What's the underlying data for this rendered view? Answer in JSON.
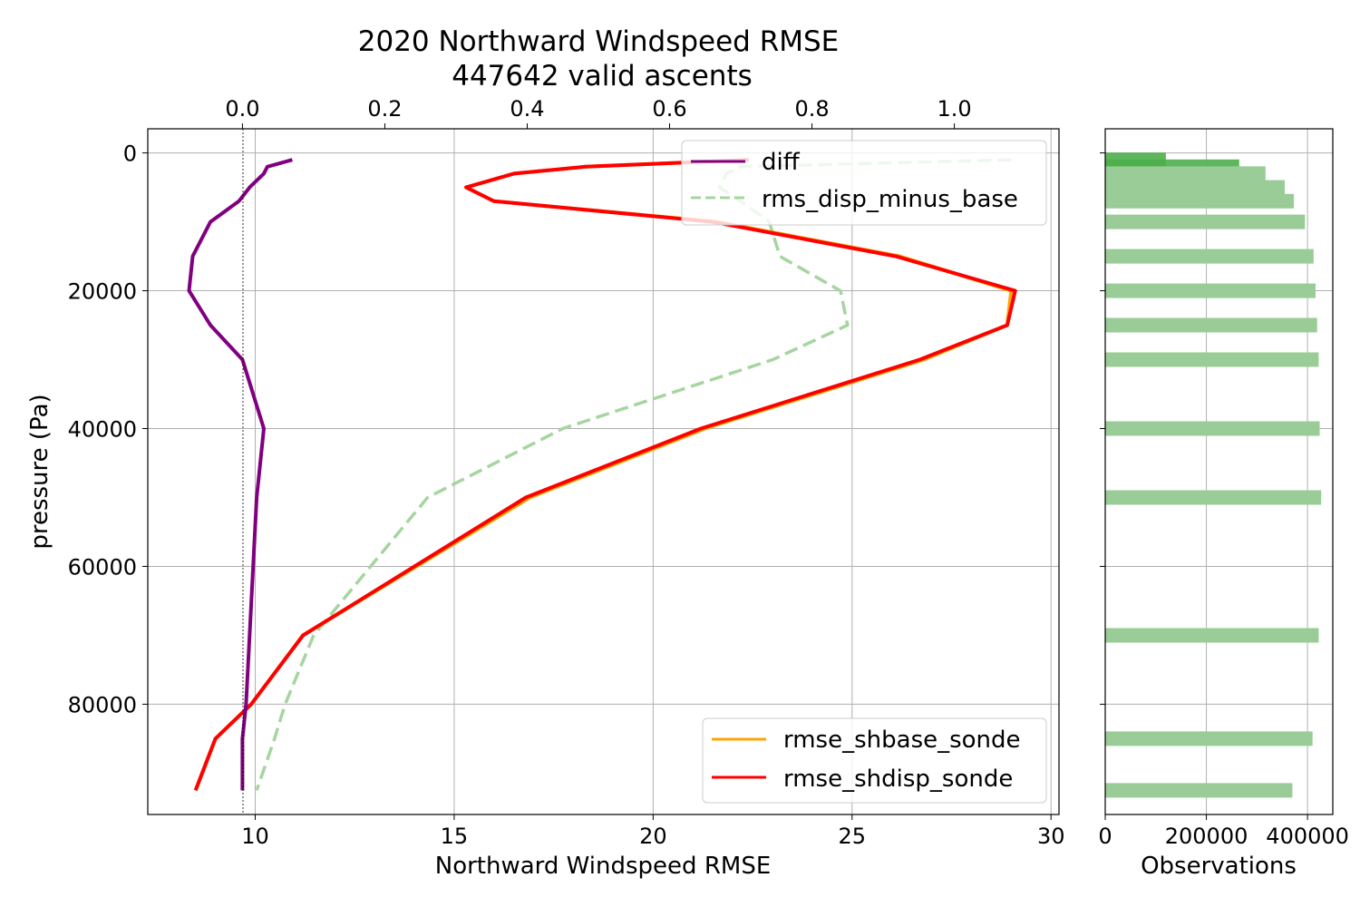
{
  "chart_data": [
    {
      "type": "line",
      "title": "2020 Northward Windspeed RMSE",
      "subtitle": "447642 valid ascents",
      "xlabel": "Northward Windspeed RMSE",
      "ylabel": "pressure (Pa)",
      "xlim": [
        7.3,
        30.2
      ],
      "ylim": [
        96000,
        -3500
      ],
      "y_inverted": true,
      "grid": true,
      "x_ticks": [
        "10",
        "15",
        "20",
        "25",
        "30"
      ],
      "y_ticks": [
        "0",
        "20000",
        "40000",
        "60000",
        "80000"
      ],
      "series": [
        {
          "name": "rmse_shbase_sonde",
          "color": "#ffa500",
          "style": "solid",
          "axis": "bottom",
          "points": [
            [
              22.4,
              1000
            ],
            [
              18.3,
              2000
            ],
            [
              16.5,
              3000
            ],
            [
              15.3,
              5000
            ],
            [
              16.0,
              7000
            ],
            [
              21.6,
              10000
            ],
            [
              26.2,
              15000
            ],
            [
              29.0,
              20000
            ],
            [
              28.9,
              25000
            ],
            [
              26.8,
              30000
            ],
            [
              21.3,
              40000
            ],
            [
              16.9,
              50000
            ],
            [
              11.2,
              70000
            ],
            [
              9.9,
              80000
            ],
            [
              9.0,
              85000
            ],
            [
              8.5,
              92500
            ]
          ]
        },
        {
          "name": "rmse_shdisp_sonde",
          "color": "#ff0000",
          "style": "solid",
          "axis": "bottom",
          "points": [
            [
              22.4,
              1000
            ],
            [
              18.3,
              2000
            ],
            [
              16.5,
              3000
            ],
            [
              15.3,
              5000
            ],
            [
              16.0,
              7000
            ],
            [
              21.5,
              10000
            ],
            [
              26.1,
              15000
            ],
            [
              29.1,
              20000
            ],
            [
              28.9,
              25000
            ],
            [
              26.7,
              30000
            ],
            [
              21.2,
              40000
            ],
            [
              16.8,
              50000
            ],
            [
              11.2,
              70000
            ],
            [
              9.9,
              80000
            ],
            [
              9.0,
              85000
            ],
            [
              8.5,
              92500
            ]
          ]
        }
      ],
      "twin_x": {
        "ticks": [
          "0.0",
          "0.2",
          "0.4",
          "0.6",
          "0.8",
          "1.0"
        ],
        "xlim": [
          -0.133,
          1.147
        ],
        "series": [
          {
            "name": "diff",
            "color": "#800080",
            "style": "solid",
            "points": [
              [
                0.07,
                1000
              ],
              [
                0.035,
                2000
              ],
              [
                0.03,
                3000
              ],
              [
                0.01,
                5000
              ],
              [
                -0.005,
                7000
              ],
              [
                -0.045,
                10000
              ],
              [
                -0.07,
                15000
              ],
              [
                -0.075,
                20000
              ],
              [
                -0.045,
                25000
              ],
              [
                0.0,
                30000
              ],
              [
                0.03,
                40000
              ],
              [
                0.02,
                50000
              ],
              [
                0.01,
                70000
              ],
              [
                0.005,
                80000
              ],
              [
                0.0,
                85000
              ],
              [
                0.0,
                92500
              ]
            ]
          },
          {
            "name": "rms_disp_minus_base",
            "color": "#a6d5a0",
            "style": "dashed",
            "points": [
              [
                1.08,
                1000
              ],
              [
                0.7,
                2000
              ],
              [
                0.68,
                3000
              ],
              [
                0.67,
                5000
              ],
              [
                0.7,
                7000
              ],
              [
                0.74,
                10000
              ],
              [
                0.755,
                15000
              ],
              [
                0.84,
                20000
              ],
              [
                0.85,
                25000
              ],
              [
                0.745,
                30000
              ],
              [
                0.45,
                40000
              ],
              [
                0.26,
                50000
              ],
              [
                0.1,
                70000
              ],
              [
                0.06,
                80000
              ],
              [
                0.045,
                85000
              ],
              [
                0.02,
                92500
              ]
            ]
          }
        ]
      },
      "legends": [
        {
          "placement": "top-right",
          "entries": [
            "diff",
            "rms_disp_minus_base"
          ]
        },
        {
          "placement": "bottom-right",
          "entries": [
            "rmse_shbase_sonde",
            "rmse_shdisp_sonde"
          ]
        }
      ]
    },
    {
      "type": "bar",
      "orientation": "horizontal",
      "xlabel": "Observations",
      "xlim": [
        0,
        450000
      ],
      "x_ticks": [
        "0",
        "200000",
        "400000"
      ],
      "grid": true,
      "bars": [
        {
          "pressure": 1000,
          "value": 120000,
          "color": "#4daf4a"
        },
        {
          "pressure": 2000,
          "value": 265000,
          "color": "#4daf4a"
        },
        {
          "pressure": 3000,
          "value": 317000,
          "color": "#99cc96"
        },
        {
          "pressure": 5000,
          "value": 355000,
          "color": "#99cc96"
        },
        {
          "pressure": 7000,
          "value": 373000,
          "color": "#99cc96"
        },
        {
          "pressure": 10000,
          "value": 395000,
          "color": "#99cc96"
        },
        {
          "pressure": 15000,
          "value": 412000,
          "color": "#99cc96"
        },
        {
          "pressure": 20000,
          "value": 416000,
          "color": "#99cc96"
        },
        {
          "pressure": 25000,
          "value": 419000,
          "color": "#99cc96"
        },
        {
          "pressure": 30000,
          "value": 422000,
          "color": "#99cc96"
        },
        {
          "pressure": 40000,
          "value": 424000,
          "color": "#99cc96"
        },
        {
          "pressure": 50000,
          "value": 427000,
          "color": "#99cc96"
        },
        {
          "pressure": 70000,
          "value": 422000,
          "color": "#99cc96"
        },
        {
          "pressure": 85000,
          "value": 410000,
          "color": "#99cc96"
        },
        {
          "pressure": 92500,
          "value": 370000,
          "color": "#99cc96"
        }
      ]
    }
  ]
}
